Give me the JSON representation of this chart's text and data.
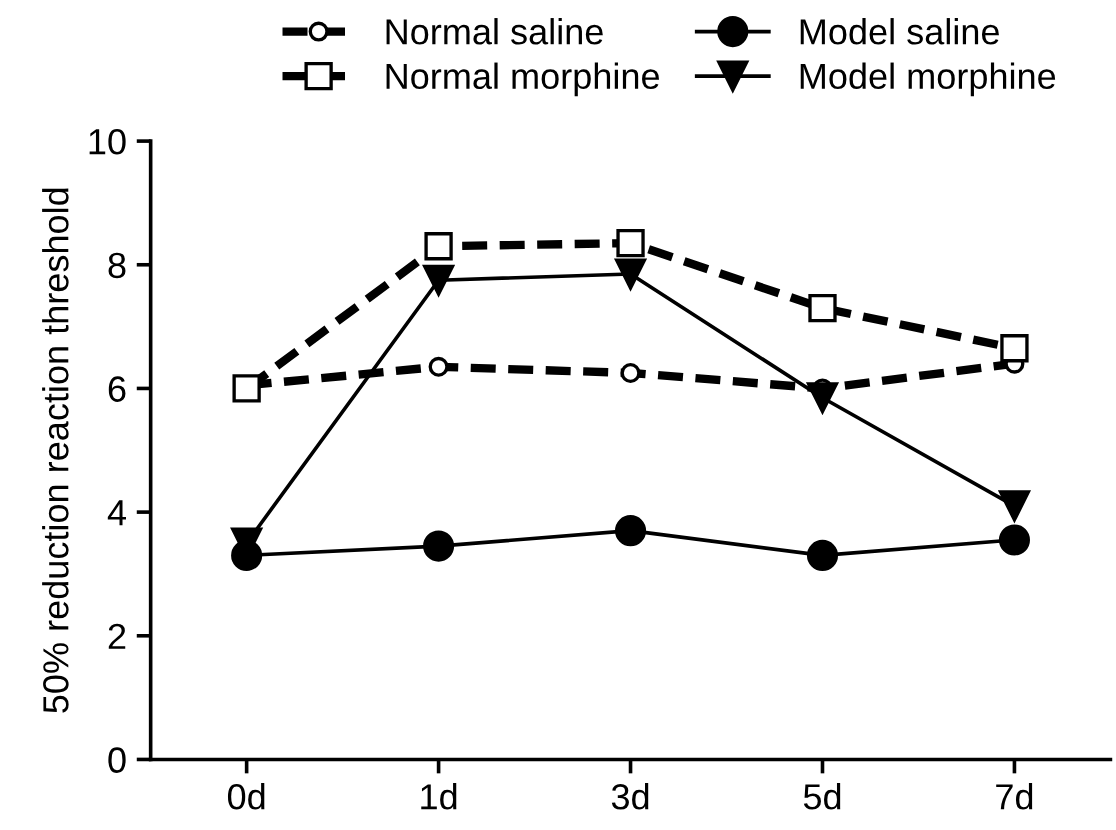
{
  "chart_data": {
    "type": "line",
    "ylabel": "50% reduction reaction threshold",
    "categories": [
      "0d",
      "1d",
      "3d",
      "5d",
      "7d"
    ],
    "series": [
      {
        "name": "Normal saline",
        "color": "#000000",
        "marker": "circle",
        "line_style": "dashed",
        "values": [
          6.05,
          6.35,
          6.25,
          6.0,
          6.4
        ]
      },
      {
        "name": "Normal morphine",
        "color": "#000000",
        "marker": "square",
        "line_style": "dashed",
        "values": [
          6.0,
          8.3,
          8.35,
          7.3,
          6.65
        ]
      },
      {
        "name": "Model saline",
        "color": "#000000",
        "marker": "circle",
        "line_style": "solid",
        "values": [
          3.3,
          3.45,
          3.7,
          3.3,
          3.55
        ]
      },
      {
        "name": "Model morphine",
        "color": "#000000",
        "marker": "triangle",
        "line_style": "solid",
        "values": [
          3.5,
          7.75,
          7.85,
          5.85,
          4.1
        ]
      }
    ],
    "ylim": [
      0,
      10
    ],
    "yticks": [
      0,
      2,
      4,
      6,
      8,
      10
    ],
    "grid": false,
    "legend": "top"
  }
}
